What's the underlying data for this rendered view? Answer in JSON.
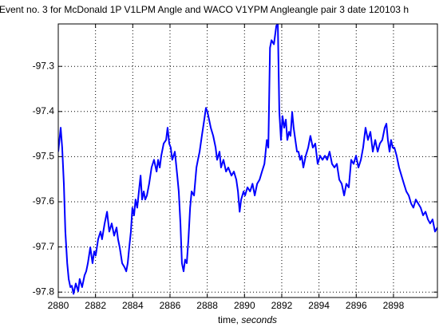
{
  "chart_data": {
    "type": "line",
    "title": "Event no. 3 for  McDonald 1P V1LPM Angle and WACO V1YPM Angleangle pair 3 date 120103 h",
    "xlabel": [
      "time,",
      "seconds"
    ],
    "xlim": [
      2880,
      2900.36
    ],
    "ylim": [
      -97.812,
      -97.206
    ],
    "xticks": [
      2880,
      2882,
      2884,
      2886,
      2888,
      2890,
      2892,
      2894,
      2896,
      2898
    ],
    "yticks": [
      -97.8,
      -97.7,
      -97.6,
      -97.5,
      -97.4,
      -97.3
    ],
    "grid": true,
    "series": [
      {
        "color": "#0000ff",
        "x": [
          2880,
          2880.13,
          2880.21,
          2880.3,
          2880.38,
          2880.48,
          2880.56,
          2880.65,
          2880.73,
          2880.82,
          2880.94,
          2881.07,
          2881.15,
          2881.28,
          2881.41,
          2881.5,
          2881.59,
          2881.72,
          2881.84,
          2881.93,
          2882.01,
          2882.14,
          2882.27,
          2882.35,
          2882.49,
          2882.62,
          2882.74,
          2882.87,
          2883,
          2883.13,
          2883.21,
          2883.3,
          2883.43,
          2883.56,
          2883.65,
          2883.73,
          2883.81,
          2883.9,
          2883.98,
          2884.07,
          2884.15,
          2884.24,
          2884.33,
          2884.42,
          2884.5,
          2884.59,
          2884.67,
          2884.76,
          2884.88,
          2885.01,
          2885.14,
          2885.28,
          2885.36,
          2885.45,
          2885.53,
          2885.66,
          2885.79,
          2885.87,
          2885.96,
          2886.04,
          2886.12,
          2886.26,
          2886.39,
          2886.47,
          2886.56,
          2886.64,
          2886.73,
          2886.81,
          2886.9,
          2886.99,
          2887.08,
          2887.16,
          2887.29,
          2887.42,
          2887.5,
          2887.59,
          2887.71,
          2887.84,
          2887.93,
          2888.01,
          2888.1,
          2888.19,
          2888.32,
          2888.45,
          2888.53,
          2888.66,
          2888.74,
          2888.87,
          2889.01,
          2889.13,
          2889.3,
          2889.43,
          2889.56,
          2889.65,
          2889.74,
          2889.82,
          2889.95,
          2890.03,
          2890.16,
          2890.3,
          2890.43,
          2890.55,
          2890.68,
          2890.81,
          2890.94,
          2891.07,
          2891.2,
          2891.28,
          2891.37,
          2891.45,
          2891.58,
          2891.71,
          2891.79,
          2891.87,
          2891.96,
          2892.04,
          2892.13,
          2892.22,
          2892.3,
          2892.39,
          2892.47,
          2892.56,
          2892.64,
          2892.73,
          2892.82,
          2892.9,
          2892.99,
          2893.07,
          2893.16,
          2893.29,
          2893.42,
          2893.54,
          2893.67,
          2893.8,
          2893.93,
          2894.06,
          2894.19,
          2894.32,
          2894.44,
          2894.57,
          2894.7,
          2894.83,
          2894.96,
          2895.09,
          2895.22,
          2895.35,
          2895.47,
          2895.6,
          2895.73,
          2895.86,
          2895.99,
          2896.12,
          2896.25,
          2896.37,
          2896.5,
          2896.63,
          2896.76,
          2896.89,
          2897.02,
          2897.15,
          2897.27,
          2897.4,
          2897.53,
          2897.62,
          2897.7,
          2897.79,
          2897.87,
          2897.96,
          2898.05,
          2898.17,
          2898.3,
          2898.43,
          2898.56,
          2898.69,
          2898.82,
          2898.95,
          2899.07,
          2899.2,
          2899.33,
          2899.46,
          2899.59,
          2899.72,
          2899.85,
          2899.97,
          2900.1,
          2900.23,
          2900.36
        ],
        "values": [
          -97.489,
          -97.436,
          -97.48,
          -97.56,
          -97.666,
          -97.736,
          -97.771,
          -97.789,
          -97.786,
          -97.804,
          -97.781,
          -97.798,
          -97.771,
          -97.789,
          -97.763,
          -97.754,
          -97.736,
          -97.701,
          -97.736,
          -97.71,
          -97.719,
          -97.683,
          -97.666,
          -97.683,
          -97.648,
          -97.622,
          -97.666,
          -97.648,
          -97.675,
          -97.657,
          -97.683,
          -97.701,
          -97.736,
          -97.745,
          -97.754,
          -97.736,
          -97.701,
          -97.666,
          -97.613,
          -97.63,
          -97.595,
          -97.613,
          -97.577,
          -97.542,
          -97.595,
          -97.577,
          -97.595,
          -97.586,
          -97.56,
          -97.524,
          -97.507,
          -97.533,
          -97.507,
          -97.524,
          -97.498,
          -97.471,
          -97.463,
          -97.436,
          -97.471,
          -97.48,
          -97.507,
          -97.489,
          -97.542,
          -97.577,
          -97.648,
          -97.736,
          -97.754,
          -97.728,
          -97.736,
          -97.683,
          -97.613,
          -97.577,
          -97.586,
          -97.524,
          -97.507,
          -97.489,
          -97.454,
          -97.418,
          -97.392,
          -97.401,
          -97.418,
          -97.436,
          -97.454,
          -97.48,
          -97.507,
          -97.489,
          -97.524,
          -97.507,
          -97.533,
          -97.524,
          -97.542,
          -97.533,
          -97.551,
          -97.577,
          -97.622,
          -97.595,
          -97.577,
          -97.586,
          -97.568,
          -97.577,
          -97.56,
          -97.586,
          -97.56,
          -97.551,
          -97.533,
          -97.516,
          -97.463,
          -97.48,
          -97.259,
          -97.242,
          -97.251,
          -97.21,
          -97.206,
          -97.401,
          -97.463,
          -97.41,
          -97.436,
          -97.418,
          -97.463,
          -97.445,
          -97.454,
          -97.401,
          -97.436,
          -97.463,
          -97.489,
          -97.489,
          -97.507,
          -97.498,
          -97.524,
          -97.498,
          -97.48,
          -97.454,
          -97.48,
          -97.471,
          -97.516,
          -97.498,
          -97.507,
          -97.498,
          -97.507,
          -97.489,
          -97.516,
          -97.524,
          -97.516,
          -97.551,
          -97.56,
          -97.586,
          -97.56,
          -97.568,
          -97.507,
          -97.516,
          -97.498,
          -97.524,
          -97.507,
          -97.48,
          -97.436,
          -97.463,
          -97.445,
          -97.489,
          -97.463,
          -97.489,
          -97.471,
          -97.463,
          -97.436,
          -97.427,
          -97.463,
          -97.489,
          -97.463,
          -97.48,
          -97.48,
          -97.498,
          -97.524,
          -97.542,
          -97.56,
          -97.577,
          -97.586,
          -97.604,
          -97.613,
          -97.595,
          -97.604,
          -97.613,
          -97.63,
          -97.622,
          -97.639,
          -97.648,
          -97.639,
          -97.666,
          -97.657
        ]
      }
    ]
  }
}
